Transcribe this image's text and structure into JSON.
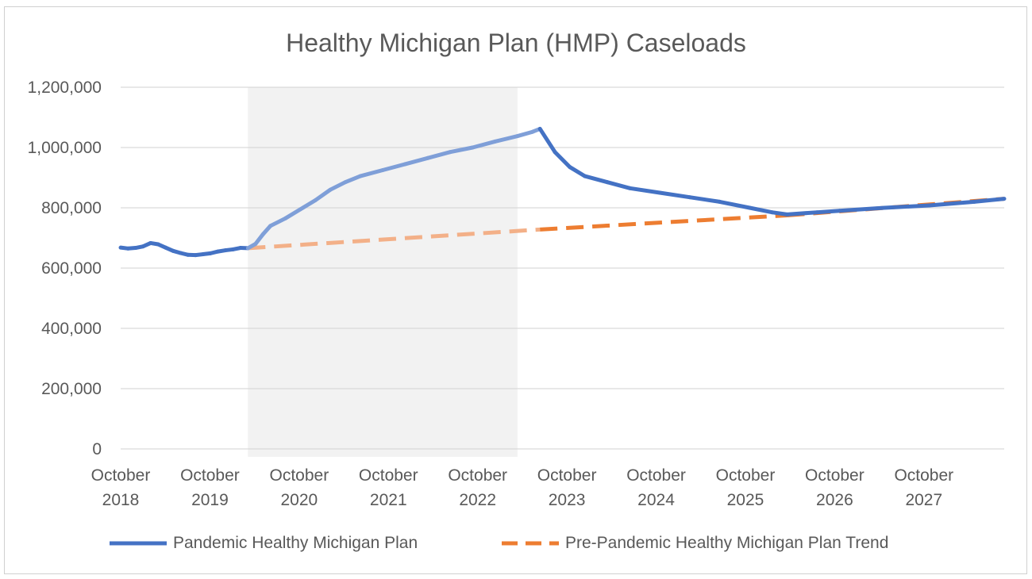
{
  "chart_data": {
    "type": "line",
    "title": "Healthy Michigan Plan (HMP) Caseloads",
    "xlabel": "",
    "ylabel": "",
    "ylim": [
      0,
      1200000
    ],
    "yticks": [
      0,
      200000,
      400000,
      600000,
      800000,
      1000000,
      1200000
    ],
    "ytick_labels": [
      "0",
      "200,000",
      "400,000",
      "600,000",
      "800,000",
      "1,000,000",
      "1,200,000"
    ],
    "x_categories": [
      {
        "line1": "October",
        "line2": "2018"
      },
      {
        "line1": "October",
        "line2": "2019"
      },
      {
        "line1": "October",
        "line2": "2020"
      },
      {
        "line1": "October",
        "line2": "2021"
      },
      {
        "line1": "October",
        "line2": "2022"
      },
      {
        "line1": "October",
        "line2": "2023"
      },
      {
        "line1": "October",
        "line2": "2024"
      },
      {
        "line1": "October",
        "line2": "2025"
      },
      {
        "line1": "October",
        "line2": "2026"
      },
      {
        "line1": "October",
        "line2": "2027"
      }
    ],
    "x_range": [
      "2018-10",
      "2028-08"
    ],
    "shaded_period": [
      "2020-03",
      "2023-03"
    ],
    "grid": true,
    "legend_position": "bottom",
    "series": [
      {
        "name": "Pandemic Healthy Michigan Plan",
        "color": "#4472C4",
        "shaded_color": "#7F9FD8",
        "style": "solid",
        "points": [
          [
            "2018-10",
            668000
          ],
          [
            "2018-11",
            665000
          ],
          [
            "2018-12",
            667000
          ],
          [
            "2019-01",
            672000
          ],
          [
            "2019-02",
            683000
          ],
          [
            "2019-03",
            679000
          ],
          [
            "2019-04",
            668000
          ],
          [
            "2019-05",
            657000
          ],
          [
            "2019-06",
            650000
          ],
          [
            "2019-07",
            644000
          ],
          [
            "2019-08",
            643000
          ],
          [
            "2019-09",
            646000
          ],
          [
            "2019-10",
            649000
          ],
          [
            "2019-11",
            655000
          ],
          [
            "2019-12",
            659000
          ],
          [
            "2020-01",
            662000
          ],
          [
            "2020-02",
            667000
          ],
          [
            "2020-03",
            666000
          ],
          [
            "2020-04",
            680000
          ],
          [
            "2020-05",
            712000
          ],
          [
            "2020-06",
            740000
          ],
          [
            "2020-08",
            765000
          ],
          [
            "2020-10",
            795000
          ],
          [
            "2020-12",
            825000
          ],
          [
            "2021-02",
            860000
          ],
          [
            "2021-04",
            885000
          ],
          [
            "2021-06",
            905000
          ],
          [
            "2021-09",
            925000
          ],
          [
            "2021-12",
            945000
          ],
          [
            "2022-03",
            965000
          ],
          [
            "2022-06",
            985000
          ],
          [
            "2022-09",
            1000000
          ],
          [
            "2022-12",
            1020000
          ],
          [
            "2023-03",
            1038000
          ],
          [
            "2023-05",
            1052000
          ],
          [
            "2023-06",
            1062000
          ],
          [
            "2023-08",
            985000
          ],
          [
            "2023-10",
            935000
          ],
          [
            "2023-12",
            905000
          ],
          [
            "2024-03",
            885000
          ],
          [
            "2024-06",
            865000
          ],
          [
            "2024-10",
            850000
          ],
          [
            "2025-02",
            835000
          ],
          [
            "2025-06",
            820000
          ],
          [
            "2025-10",
            800000
          ],
          [
            "2026-01",
            785000
          ],
          [
            "2026-03",
            778000
          ],
          [
            "2026-07",
            785000
          ],
          [
            "2026-10",
            790000
          ],
          [
            "2027-04",
            800000
          ],
          [
            "2027-10",
            808000
          ],
          [
            "2028-04",
            820000
          ],
          [
            "2028-08",
            830000
          ]
        ]
      },
      {
        "name": "Pre-Pandemic Healthy Michigan Plan Trend",
        "color": "#ED7D31",
        "shaded_color": "#F3B088",
        "style": "dashed",
        "points": [
          [
            "2020-03",
            666000
          ],
          [
            "2023-06",
            728000
          ],
          [
            "2026-03",
            775000
          ],
          [
            "2028-08",
            830000
          ]
        ]
      }
    ]
  }
}
